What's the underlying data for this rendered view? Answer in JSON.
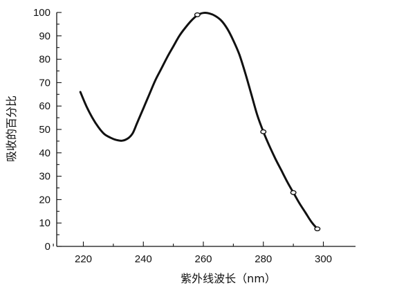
{
  "chart_data": {
    "type": "line",
    "title": "",
    "xlabel": "紫外线波长（nm）",
    "ylabel": "吸收的百分比",
    "xlim": [
      210,
      302
    ],
    "ylim": [
      0,
      100
    ],
    "xticks": [
      220,
      240,
      260,
      280,
      300
    ],
    "yticks": [
      0,
      10,
      20,
      30,
      40,
      50,
      60,
      70,
      80,
      90,
      100
    ],
    "grid": false,
    "series": [
      {
        "curve": [
          [
            219,
            66
          ],
          [
            221,
            60
          ],
          [
            223,
            55
          ],
          [
            225,
            51
          ],
          [
            227,
            48
          ],
          [
            229,
            46.5
          ],
          [
            231,
            45.5
          ],
          [
            233,
            45.2
          ],
          [
            235,
            46.3
          ],
          [
            236.5,
            48.5
          ],
          [
            238,
            53
          ],
          [
            240,
            59
          ],
          [
            242,
            65
          ],
          [
            244,
            71
          ],
          [
            246,
            76
          ],
          [
            248,
            81
          ],
          [
            250,
            85.5
          ],
          [
            252,
            90
          ],
          [
            254,
            93.5
          ],
          [
            256,
            96.5
          ],
          [
            258,
            98.8
          ],
          [
            260,
            99.8
          ],
          [
            262,
            99.6
          ],
          [
            264,
            98.5
          ],
          [
            266,
            96.5
          ],
          [
            268,
            93
          ],
          [
            270,
            88
          ],
          [
            272,
            82
          ],
          [
            274,
            74
          ],
          [
            276,
            65
          ],
          [
            278,
            56
          ],
          [
            280,
            49
          ],
          [
            282,
            43
          ],
          [
            284,
            37.5
          ],
          [
            286,
            32.5
          ],
          [
            288,
            27.5
          ],
          [
            290,
            23
          ],
          [
            292,
            18.5
          ],
          [
            294,
            14.5
          ],
          [
            296,
            10.5
          ],
          [
            298,
            7.5
          ]
        ],
        "markers": [
          [
            258,
            99
          ],
          [
            280,
            49
          ],
          [
            290,
            23
          ],
          [
            298,
            7.5
          ]
        ]
      }
    ]
  }
}
